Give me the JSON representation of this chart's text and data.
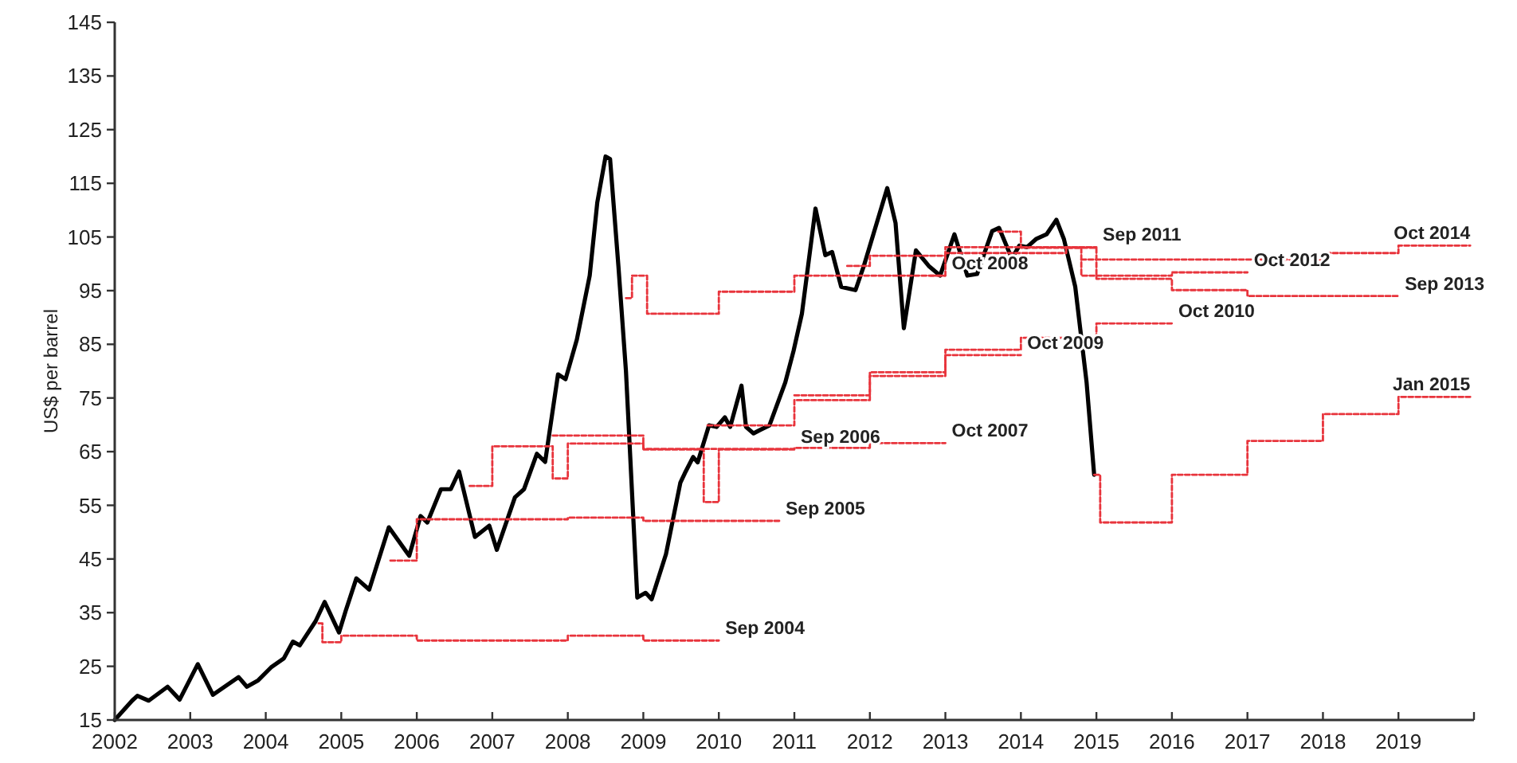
{
  "chart_data": {
    "type": "line",
    "ylabel": "US$ per barrel",
    "xlim": [
      2002,
      2020
    ],
    "xticks": [
      2002,
      2003,
      2004,
      2005,
      2006,
      2007,
      2008,
      2009,
      2010,
      2011,
      2012,
      2013,
      2014,
      2015,
      2016,
      2017,
      2018,
      2019
    ],
    "ylim": [
      15,
      145
    ],
    "yticks": [
      15,
      25,
      35,
      45,
      55,
      65,
      75,
      85,
      95,
      105,
      115,
      125,
      135,
      145
    ],
    "grid": false,
    "legend": false,
    "series": [
      {
        "type": "step",
        "name": "Sep 2004",
        "color": "#e8343c",
        "line_style": "dashed",
        "x": [
          2004.7,
          2004.75,
          2005,
          2006,
          2008,
          2009,
          2010
        ],
        "values": [
          33,
          29.5,
          30.7,
          29.8,
          30.7,
          29.8,
          29.8
        ]
      },
      {
        "type": "step",
        "name": "Sep 2005",
        "color": "#e8343c",
        "line_style": "dashed",
        "x": [
          2005.65,
          2005.95,
          2006,
          2008,
          2009,
          2010.8
        ],
        "values": [
          44.7,
          44.7,
          52.4,
          52.7,
          52.1,
          52.1
        ]
      },
      {
        "type": "step",
        "name": "Sep 2006",
        "color": "#e8343c",
        "line_style": "dashed",
        "x": [
          2006.7,
          2007,
          2007.8,
          2008,
          2009,
          2009.8,
          2010,
          2011
        ],
        "values": [
          58.6,
          66,
          60,
          66.5,
          65.4,
          55.6,
          65.4,
          65.4
        ]
      },
      {
        "type": "step",
        "name": "Oct 2007",
        "color": "#e8343c",
        "line_style": "dashed",
        "x": [
          2007.8,
          2008,
          2009,
          2011,
          2012,
          2013
        ],
        "values": [
          68,
          68,
          65.5,
          65.7,
          66.6,
          66.6
        ]
      },
      {
        "type": "step",
        "name": "Oct 2008",
        "color": "#e8343c",
        "line_style": "dashed",
        "x": [
          2008.77,
          2008.85,
          2009.05,
          2010,
          2011,
          2013
        ],
        "values": [
          93.6,
          97.8,
          90.7,
          94.8,
          97.8,
          97.8
        ]
      },
      {
        "type": "step",
        "name": "Oct 2009",
        "color": "#e8343c",
        "line_style": "dashed",
        "x": [
          2009.85,
          2011,
          2012,
          2013,
          2014
        ],
        "values": [
          69.9,
          74.6,
          79.1,
          83,
          83
        ]
      },
      {
        "type": "step",
        "name": "Oct 2010",
        "color": "#e8343c",
        "line_style": "dashed",
        "x": [
          2011,
          2012,
          2013,
          2014,
          2015,
          2016
        ],
        "values": [
          75.5,
          79.8,
          84,
          86.2,
          88.9,
          88.9
        ]
      },
      {
        "type": "step",
        "name": "Sep 2011",
        "color": "#e8343c",
        "line_style": "dashed",
        "x": [
          2011.7,
          2012,
          2013,
          2015
        ],
        "values": [
          99.6,
          101.5,
          103.1,
          103.1
        ]
      },
      {
        "type": "step",
        "name": "Oct 2012",
        "color": "#e8343c",
        "line_style": "dashed",
        "x": [
          2012.8,
          2013,
          2014.6,
          2014.8,
          2016,
          2017
        ],
        "values": [
          97.8,
          102,
          103,
          97.8,
          98.4,
          98.4
        ]
      },
      {
        "type": "step",
        "name": "Sep 2013",
        "color": "#e8343c",
        "line_style": "dashed",
        "x": [
          2013.7,
          2014,
          2015,
          2016,
          2017,
          2019
        ],
        "values": [
          106,
          103,
          97.2,
          95.1,
          94,
          94
        ]
      },
      {
        "type": "step",
        "name": "Oct 2014",
        "color": "#e8343c",
        "line_style": "dashed",
        "x": [
          2014.8,
          2015,
          2017,
          2018,
          2019,
          2019.95
        ],
        "values": [
          100.8,
          100.8,
          100.8,
          102,
          103.4,
          103.4
        ]
      },
      {
        "type": "step",
        "name": "Jan 2015",
        "color": "#e8343c",
        "line_style": "dashed",
        "x": [
          2014.97,
          2015.05,
          2016,
          2017,
          2018,
          2019,
          2019.95
        ],
        "values": [
          60.7,
          51.8,
          60.7,
          67,
          72,
          75.2,
          75.2
        ]
      },
      {
        "type": "line",
        "color": "#000000",
        "line_style": "solid",
        "x": [
          2002,
          2002.23,
          2002.3,
          2002.45,
          2002.7,
          2002.86,
          2003.1,
          2003.3,
          2003.64,
          2003.75,
          2003.9,
          2004.07,
          2004.24,
          2004.36,
          2004.45,
          2004.66,
          2004.78,
          2004.97,
          2005.06,
          2005.2,
          2005.37,
          2005.63,
          2005.9,
          2006.05,
          2006.14,
          2006.32,
          2006.45,
          2006.56,
          2006.77,
          2006.96,
          2007.06,
          2007.3,
          2007.42,
          2007.59,
          2007.7,
          2007.87,
          2007.97,
          2008.12,
          2008.29,
          2008.39,
          2008.5,
          2008.56,
          2008.67,
          2008.77,
          2008.92,
          2009.03,
          2009.11,
          2009.3,
          2009.49,
          2009.55,
          2009.66,
          2009.72,
          2009.87,
          2009.97,
          2010.08,
          2010.15,
          2010.3,
          2010.36,
          2010.46,
          2010.54,
          2010.67,
          2010.88,
          2010.99,
          2011.1,
          2011.28,
          2011.41,
          2011.5,
          2011.62,
          2011.81,
          2011.92,
          2012.23,
          2012.34,
          2012.45,
          2012.61,
          2012.78,
          2012.93,
          2013.12,
          2013.29,
          2013.42,
          2013.62,
          2013.71,
          2013.88,
          2013.98,
          2014.08,
          2014.2,
          2014.34,
          2014.47,
          2014.57,
          2014.72,
          2014.87,
          2014.97
        ],
        "values": [
          15,
          18.6,
          19.5,
          18.6,
          21.2,
          18.8,
          25.4,
          19.7,
          23,
          21.2,
          22.4,
          24.8,
          26.5,
          29.6,
          28.9,
          33.4,
          37,
          31.3,
          35.4,
          41.4,
          39.3,
          50.9,
          45.6,
          53,
          51.8,
          58,
          58,
          61.3,
          49.1,
          51.2,
          46.7,
          56.5,
          58,
          64.6,
          63.1,
          79.4,
          78.5,
          85.9,
          97.8,
          111.4,
          120,
          119.5,
          99.6,
          80,
          37.8,
          38.7,
          37.5,
          45.9,
          59.2,
          61,
          64,
          63,
          69.9,
          69.6,
          71.4,
          69.6,
          77.3,
          69.6,
          68.4,
          69,
          69.9,
          77.9,
          83.8,
          90.7,
          110.3,
          101.6,
          102.2,
          95.7,
          95.1,
          99.6,
          114.1,
          107.6,
          88,
          102.5,
          99.6,
          97.8,
          105.5,
          97.8,
          98.1,
          106.1,
          106.7,
          101,
          103.4,
          103.1,
          104.6,
          105.5,
          108.2,
          104.6,
          95.7,
          77.9,
          60.7
        ]
      }
    ]
  }
}
